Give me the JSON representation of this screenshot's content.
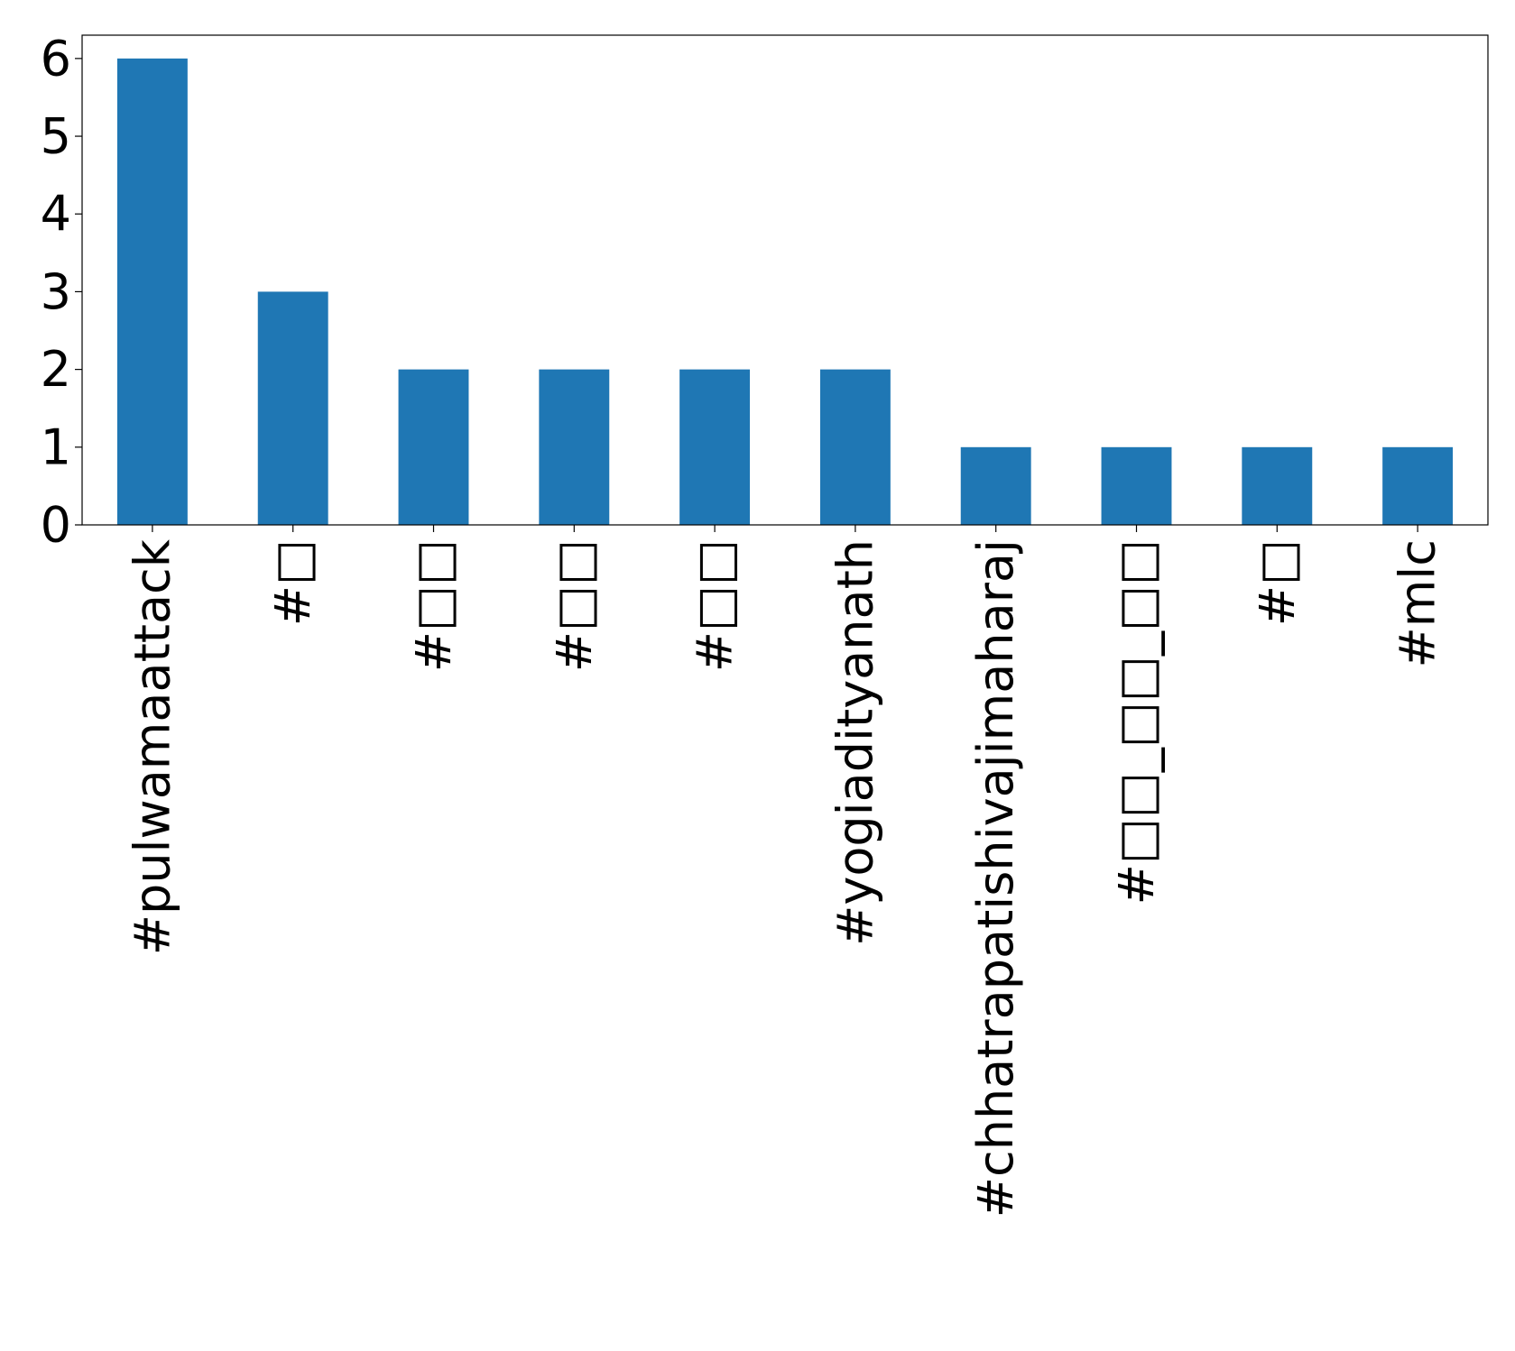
{
  "chart_data": {
    "type": "bar",
    "title": "",
    "xlabel": "",
    "ylabel": "",
    "categories": [
      "#pulwamaattack",
      "#□",
      "#□□",
      "#□□",
      "#□□",
      "#yogiadityanath",
      "#chhatrapatishivajimaharaj",
      "#□□_□□_□□",
      "#□",
      "#mlc"
    ],
    "values": [
      6,
      3,
      2,
      2,
      2,
      2,
      1,
      1,
      1,
      1
    ],
    "ylim": [
      0,
      6.3
    ],
    "yticks": [
      0,
      1,
      2,
      3,
      4,
      5,
      6
    ],
    "grid": false,
    "legend": "none",
    "colors": {
      "bar": "#1f77b4",
      "axis": "#000000",
      "background": "#ffffff"
    }
  }
}
